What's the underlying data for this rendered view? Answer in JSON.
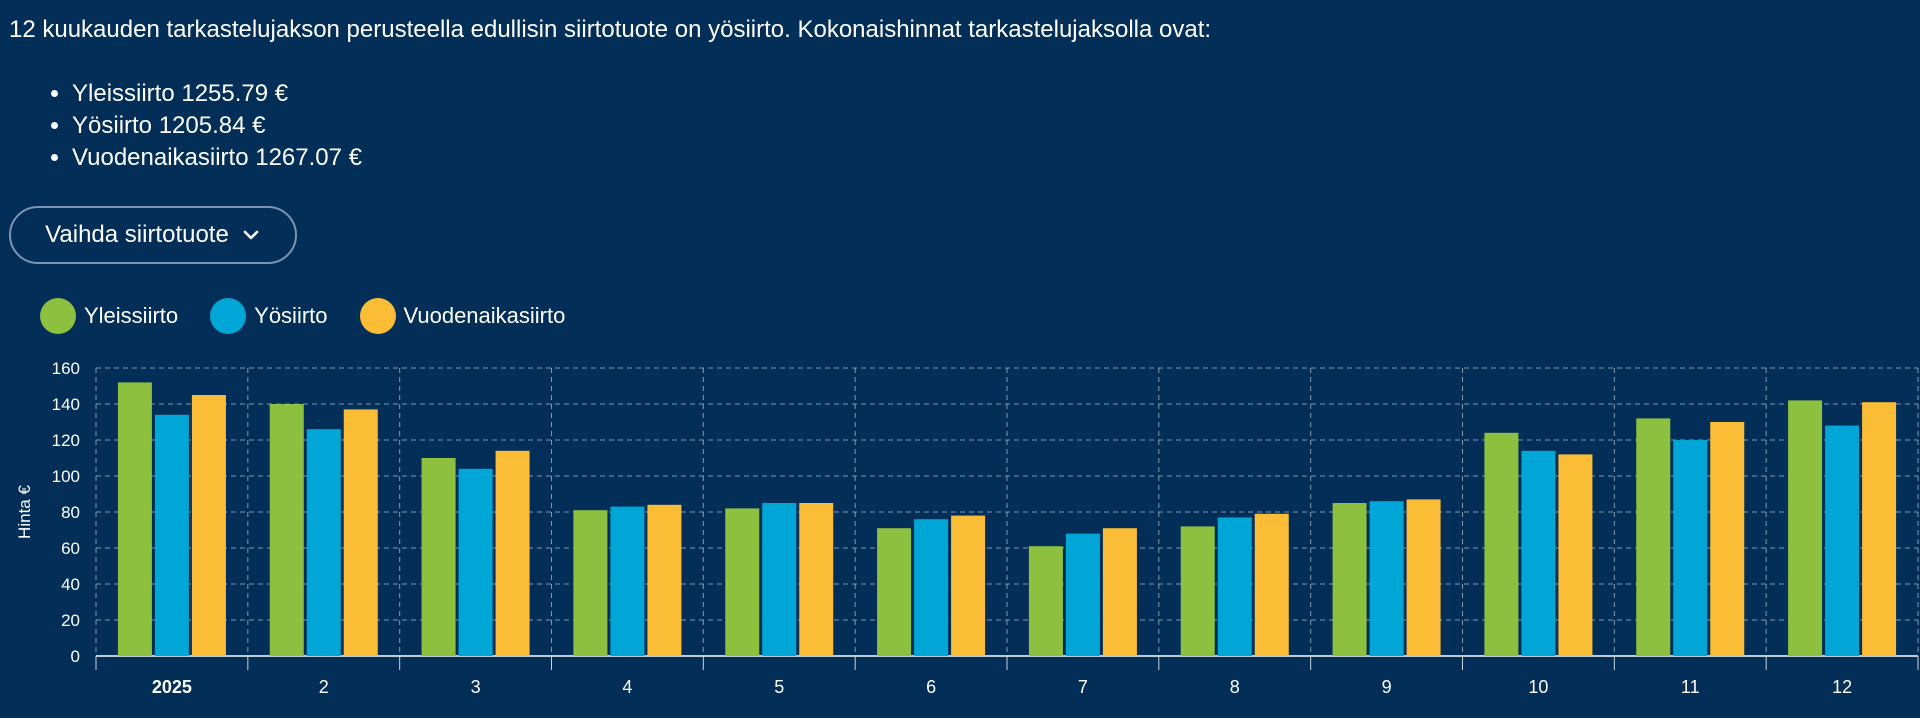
{
  "intro": {
    "text": "12 kuukauden tarkastelujakson perusteella edullisin siirtotuote on yösiirto. Kokonaishinnat tarkastelujaksolla ovat:"
  },
  "totals": [
    "Yleissiirto 1255.79 €",
    "Yösiirto 1205.84 €",
    "Vuodenaikasiirto 1267.07 €"
  ],
  "switch_button": {
    "label": "Vaihda siirtotuote",
    "icon": "chevron-down-icon"
  },
  "chart_data": {
    "type": "bar",
    "categories": [
      "2025",
      "2",
      "3",
      "4",
      "5",
      "6",
      "7",
      "8",
      "9",
      "10",
      "11",
      "12"
    ],
    "series": [
      {
        "name": "Yleissiirto",
        "color": "#8dc03f",
        "values": [
          152,
          140,
          110,
          81,
          82,
          71,
          61,
          72,
          85,
          124,
          132,
          142
        ]
      },
      {
        "name": "Yösiirto",
        "color": "#00a6d6",
        "values": [
          134,
          126,
          104,
          83,
          85,
          76,
          68,
          77,
          86,
          114,
          120,
          128
        ]
      },
      {
        "name": "Vuodenaikasiirto",
        "color": "#fbbd35",
        "values": [
          145,
          137,
          114,
          84,
          85,
          78,
          71,
          79,
          87,
          112,
          130,
          141
        ]
      }
    ],
    "ylabel": "Hinta €",
    "ylim": [
      0,
      160
    ],
    "yticks": [
      0,
      20,
      40,
      60,
      80,
      100,
      120,
      140,
      160
    ],
    "grid": true,
    "legend": "top-left"
  }
}
